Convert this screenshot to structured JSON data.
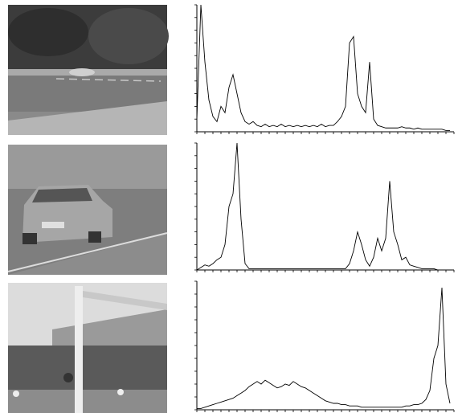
{
  "chart_data": [
    {
      "type": "line",
      "color": "#000000",
      "x": [
        0,
        4,
        8,
        12,
        16,
        20,
        24,
        28,
        32,
        36,
        40,
        44,
        48,
        52,
        56,
        60,
        64,
        68,
        72,
        76,
        80,
        84,
        88,
        92,
        96,
        100,
        104,
        108,
        112,
        116,
        120,
        124,
        128,
        132,
        136,
        140,
        144,
        148,
        152,
        156,
        160,
        164,
        168,
        172,
        176,
        180,
        184,
        188,
        192,
        196,
        200,
        204,
        208,
        212,
        216,
        220,
        224,
        228,
        232,
        236,
        240,
        244,
        248,
        252
      ],
      "values": [
        10,
        100,
        55,
        25,
        12,
        8,
        20,
        15,
        35,
        45,
        30,
        15,
        8,
        6,
        8,
        5,
        4,
        6,
        4,
        5,
        4,
        6,
        4,
        5,
        4,
        5,
        4,
        5,
        4,
        5,
        4,
        6,
        4,
        5,
        5,
        8,
        12,
        20,
        70,
        75,
        30,
        20,
        15,
        55,
        10,
        5,
        4,
        3,
        3,
        3,
        3,
        4,
        3,
        3,
        2,
        3,
        2,
        2,
        2,
        2,
        2,
        2,
        1,
        1
      ],
      "xlim": [
        0,
        256
      ],
      "ylim": [
        0,
        100
      ],
      "xticks": [
        0,
        8,
        16,
        24,
        32,
        40,
        48,
        56,
        64,
        72,
        80,
        88,
        96,
        104,
        112,
        120,
        128,
        136,
        144,
        152,
        160,
        168,
        176,
        184,
        192,
        200,
        208,
        216,
        224,
        232,
        240,
        248,
        256
      ],
      "yticks": [
        0,
        10,
        20,
        30,
        40,
        50,
        60,
        70,
        80,
        90,
        100
      ]
    },
    {
      "type": "line",
      "color": "#000000",
      "x": [
        0,
        4,
        8,
        12,
        16,
        20,
        24,
        28,
        32,
        36,
        40,
        44,
        48,
        52,
        56,
        60,
        64,
        68,
        72,
        76,
        80,
        84,
        88,
        92,
        96,
        100,
        104,
        108,
        112,
        116,
        120,
        124,
        128,
        132,
        136,
        140,
        144,
        148,
        152,
        156,
        160,
        164,
        168,
        172,
        176,
        180,
        184,
        188,
        192,
        196,
        200,
        204,
        208,
        212,
        216,
        220,
        224,
        228,
        232,
        236,
        240,
        244,
        248,
        252
      ],
      "values": [
        0,
        2,
        4,
        3,
        5,
        8,
        10,
        20,
        50,
        60,
        100,
        40,
        5,
        1,
        1,
        1,
        1,
        1,
        1,
        1,
        1,
        1,
        1,
        1,
        1,
        1,
        1,
        1,
        1,
        1,
        1,
        1,
        1,
        1,
        1,
        1,
        1,
        1,
        5,
        15,
        30,
        20,
        8,
        3,
        10,
        25,
        15,
        25,
        70,
        30,
        20,
        8,
        10,
        4,
        3,
        2,
        1,
        1,
        1,
        1,
        0,
        0,
        0,
        0
      ],
      "xlim": [
        0,
        256
      ],
      "ylim": [
        0,
        100
      ],
      "xticks": [
        0,
        8,
        16,
        24,
        32,
        40,
        48,
        56,
        64,
        72,
        80,
        88,
        96,
        104,
        112,
        120,
        128,
        136,
        144,
        152,
        160,
        168,
        176,
        184,
        192,
        200,
        208,
        216,
        224,
        232,
        240,
        248,
        256
      ],
      "yticks": [
        0,
        10,
        20,
        30,
        40,
        50,
        60,
        70,
        80,
        90,
        100
      ]
    },
    {
      "type": "line",
      "color": "#000000",
      "x": [
        0,
        4,
        8,
        12,
        16,
        20,
        24,
        28,
        32,
        36,
        40,
        44,
        48,
        52,
        56,
        60,
        64,
        68,
        72,
        76,
        80,
        84,
        88,
        92,
        96,
        100,
        104,
        108,
        112,
        116,
        120,
        124,
        128,
        132,
        136,
        140,
        144,
        148,
        152,
        156,
        160,
        164,
        168,
        172,
        176,
        180,
        184,
        188,
        192,
        196,
        200,
        204,
        208,
        212,
        216,
        220,
        224,
        228,
        232,
        236,
        240,
        244,
        248,
        252
      ],
      "values": [
        1,
        1,
        2,
        3,
        4,
        5,
        6,
        7,
        8,
        9,
        11,
        13,
        15,
        18,
        20,
        22,
        20,
        23,
        21,
        19,
        17,
        18,
        20,
        19,
        22,
        20,
        18,
        17,
        15,
        13,
        11,
        9,
        7,
        6,
        5,
        5,
        4,
        4,
        3,
        3,
        3,
        2,
        2,
        2,
        2,
        2,
        2,
        2,
        2,
        2,
        2,
        2,
        3,
        3,
        4,
        4,
        5,
        8,
        15,
        40,
        50,
        95,
        20,
        5
      ],
      "xlim": [
        0,
        256
      ],
      "ylim": [
        0,
        100
      ],
      "xticks": [
        0,
        8,
        16,
        24,
        32,
        40,
        48,
        56,
        64,
        72,
        80,
        88,
        96,
        104,
        112,
        120,
        128,
        136,
        144,
        152,
        160,
        168,
        176,
        184,
        192,
        200,
        208,
        216,
        224,
        232,
        240,
        248,
        256
      ],
      "yticks": [
        0,
        10,
        20,
        30,
        40,
        50,
        60,
        70,
        80,
        90,
        100
      ]
    }
  ]
}
